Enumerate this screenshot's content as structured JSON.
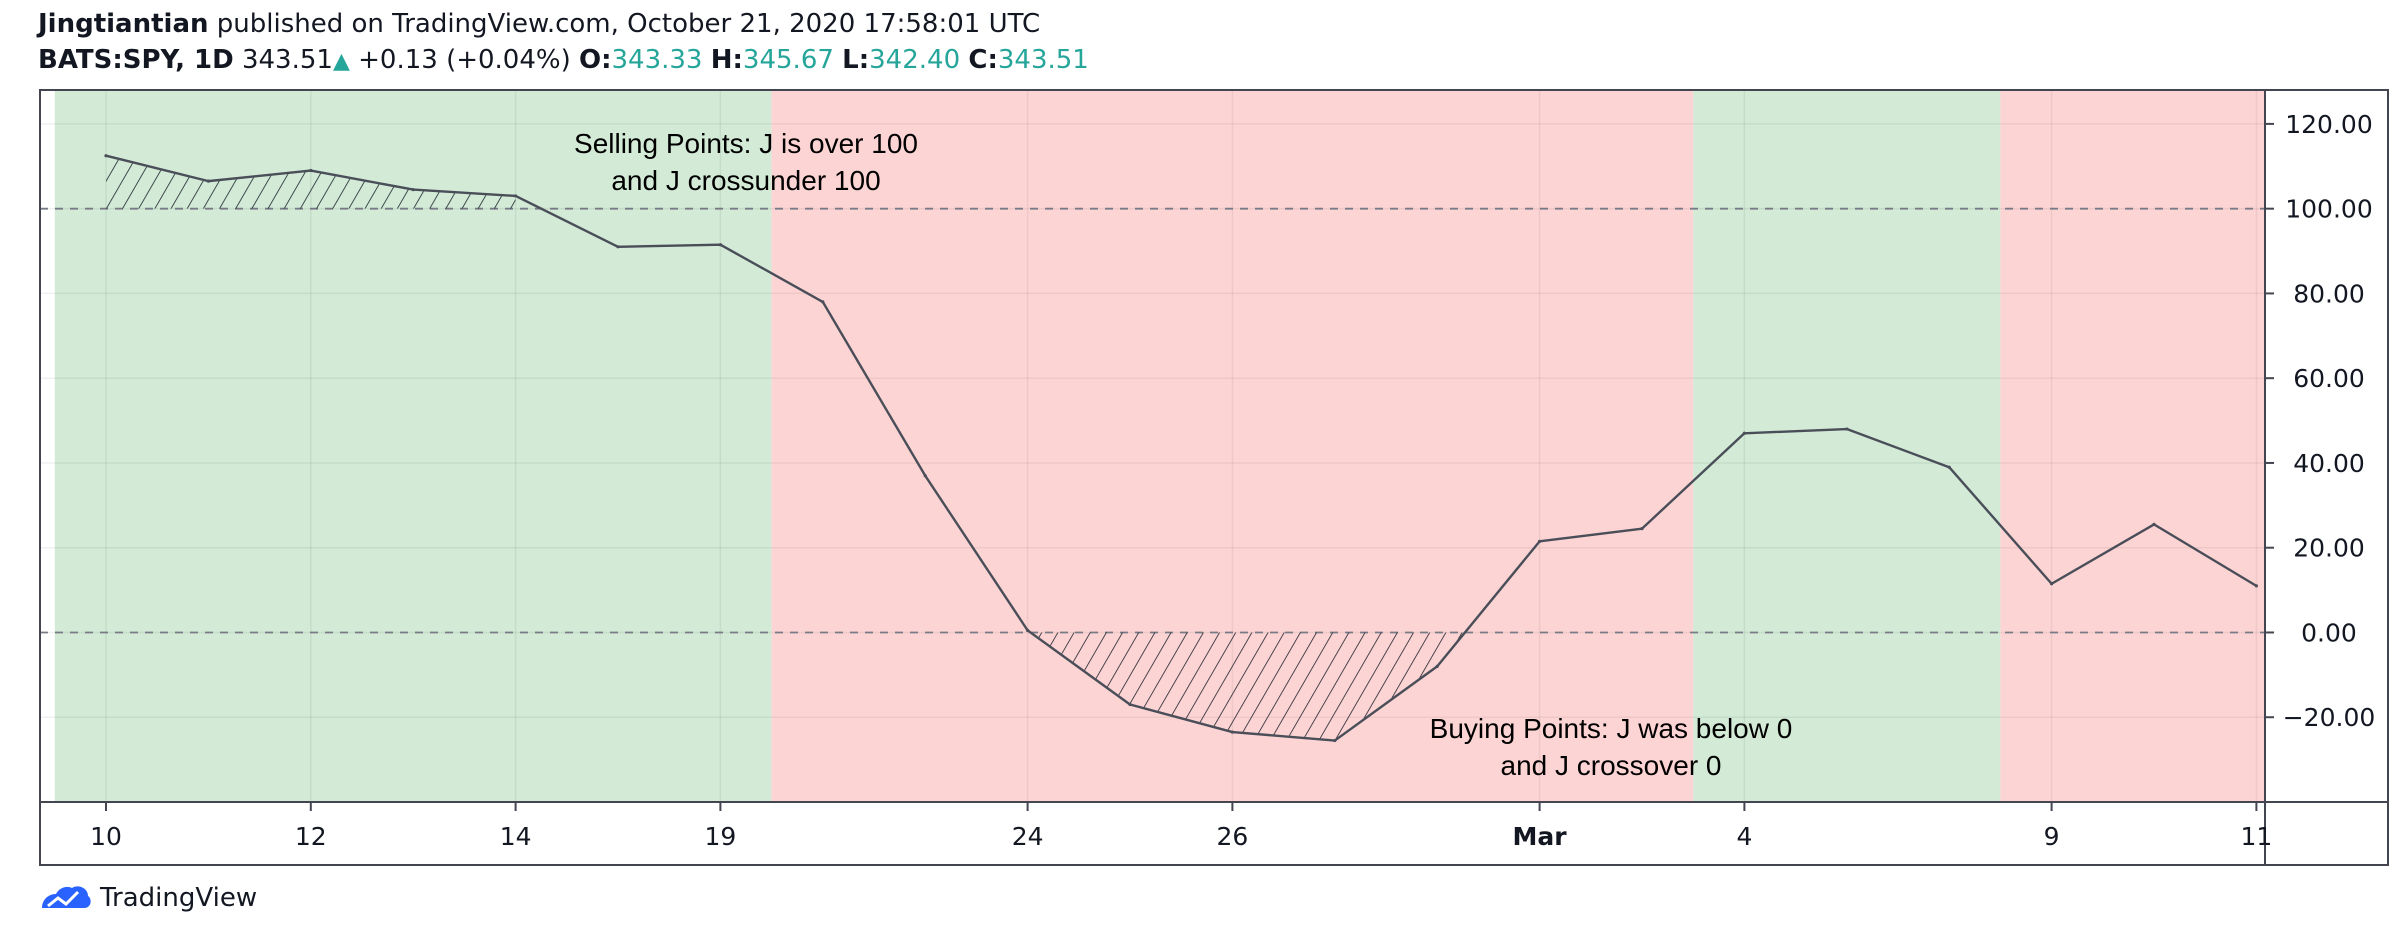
{
  "header": {
    "author": "Jingtiantian",
    "published_text": "published on TradingView.com, October 21, 2020 17:58:01 UTC",
    "symbol": "BATS:SPY, 1D",
    "price": "343.51",
    "change_icon": "up-triangle-icon",
    "change": "+0.13 (+0.04%)",
    "o_label": "O:",
    "o_value": "343.33",
    "h_label": "H:",
    "h_value": "345.67",
    "l_label": "L:",
    "l_value": "342.40",
    "c_label": "C:",
    "c_value": "343.51"
  },
  "footer": {
    "logo_icon": "tradingview-logo-icon",
    "brand": "TradingView"
  },
  "colors": {
    "green_zone": "#d2ead6",
    "red_zone": "#fdd4d4",
    "line": "#4a4e59",
    "teal": "#26a69a",
    "axis": "#131722"
  },
  "chart_data": {
    "type": "line",
    "indicator": "J",
    "x_labels": [
      "10",
      "12",
      "14",
      "19",
      "24",
      "26",
      "Mar",
      "4",
      "9",
      "11"
    ],
    "x_label_indices": [
      0,
      2,
      4,
      6,
      9,
      11,
      14,
      16,
      19,
      21
    ],
    "values": [
      112.5,
      106.5,
      109,
      104.5,
      103,
      91,
      91.5,
      78,
      37,
      0.5,
      -17,
      -23.5,
      -25.5,
      -8,
      21.5,
      24.5,
      47,
      48,
      39,
      11.5,
      25.5,
      11
    ],
    "ylim": [
      -40,
      128
    ],
    "y_ticks": [
      "120.00",
      "100.00",
      "80.00",
      "60.00",
      "40.00",
      "20.00",
      "0.00",
      "−20.00"
    ],
    "y_tick_values": [
      120,
      100,
      80,
      60,
      40,
      20,
      0,
      -20
    ],
    "reference_lines": [
      100,
      0
    ],
    "zones": [
      {
        "kind": "green",
        "from": -0.5,
        "to": 6.5
      },
      {
        "kind": "red",
        "from": 6.5,
        "to": 15.5
      },
      {
        "kind": "green",
        "from": 15.5,
        "to": 18.5
      },
      {
        "kind": "red",
        "from": 18.5,
        "to": 21.2
      }
    ],
    "hatched_regions": [
      {
        "from": 0,
        "to": 4,
        "threshold": 100,
        "side": "above"
      },
      {
        "from": 9,
        "to": 13.6,
        "threshold": 0,
        "side": "below"
      }
    ],
    "annotations": [
      {
        "text_line1": "Selling Points: J is over 100",
        "text_line2": "and J crossunder 100",
        "at_index": 6.5,
        "at_value": 112
      },
      {
        "text_line1": "Buying Points: J was below 0",
        "text_line2": "and J crossover 0",
        "at_index": 15.5,
        "at_value": -25
      }
    ],
    "title": "",
    "xlabel": "",
    "ylabel": "",
    "grid": true,
    "legend": "none"
  }
}
